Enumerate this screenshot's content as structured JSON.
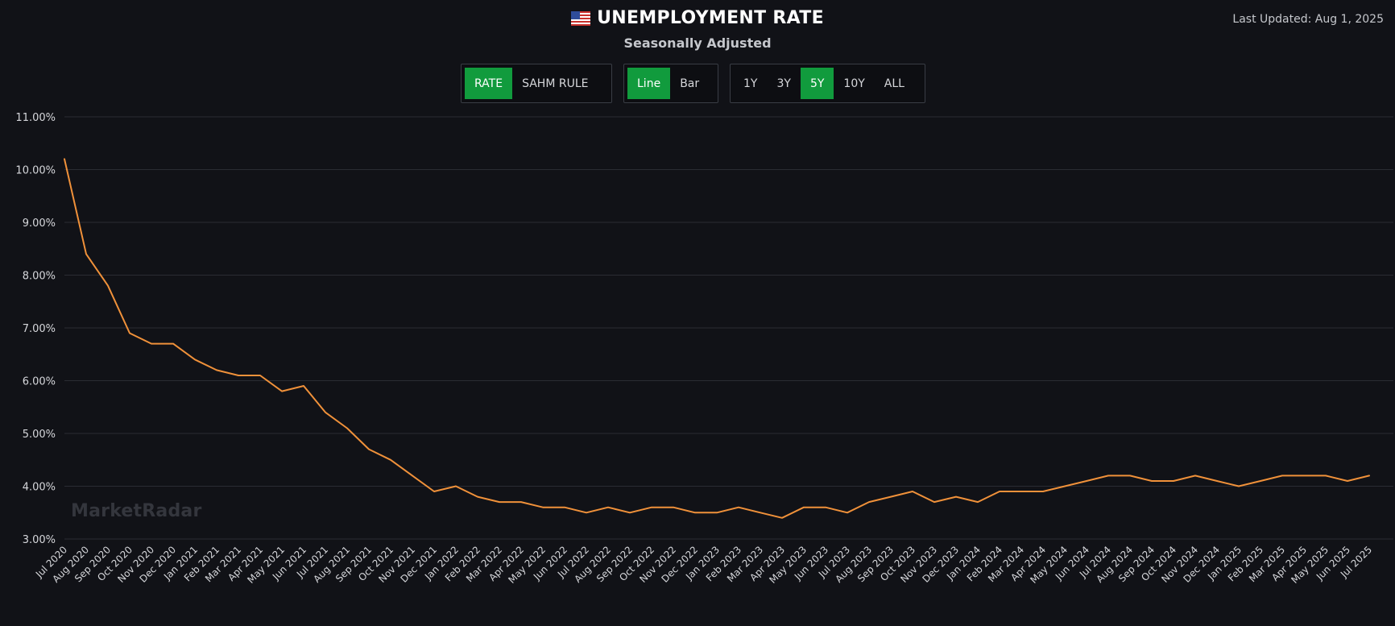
{
  "header": {
    "title": "UNEMPLOYMENT RATE",
    "subtitle": "Seasonally Adjusted",
    "last_updated": "Last Updated: Aug 1, 2025",
    "flag_icon": "us-flag-icon"
  },
  "controls": {
    "metric": {
      "options": [
        "RATE",
        "SAHM RULE"
      ],
      "selected": "RATE"
    },
    "chart_type": {
      "options": [
        "Line",
        "Bar"
      ],
      "selected": "Line"
    },
    "range": {
      "options": [
        "1Y",
        "3Y",
        "5Y",
        "10Y",
        "ALL"
      ],
      "selected": "5Y"
    }
  },
  "watermark": "MarketRadar",
  "colors": {
    "background": "#111217",
    "line": "#f0913a",
    "accent_green": "#119b3d",
    "grid": "#2a2c33",
    "axis_text": "#d6d7db"
  },
  "chart_data": {
    "type": "line",
    "title": "UNEMPLOYMENT RATE",
    "subtitle": "Seasonally Adjusted",
    "xlabel": "",
    "ylabel": "",
    "ylim": [
      3.0,
      11.0
    ],
    "yticks": [
      "3.00%",
      "4.00%",
      "5.00%",
      "6.00%",
      "7.00%",
      "8.00%",
      "9.00%",
      "10.00%",
      "11.00%"
    ],
    "ytick_values": [
      3,
      4,
      5,
      6,
      7,
      8,
      9,
      10,
      11
    ],
    "grid": true,
    "legend": "none",
    "x": [
      "Jul 2020",
      "Aug 2020",
      "Sep 2020",
      "Oct 2020",
      "Nov 2020",
      "Dec 2020",
      "Jan 2021",
      "Feb 2021",
      "Mar 2021",
      "Apr 2021",
      "May 2021",
      "Jun 2021",
      "Jul 2021",
      "Aug 2021",
      "Sep 2021",
      "Oct 2021",
      "Nov 2021",
      "Dec 2021",
      "Jan 2022",
      "Feb 2022",
      "Mar 2022",
      "Apr 2022",
      "May 2022",
      "Jun 2022",
      "Jul 2022",
      "Aug 2022",
      "Sep 2022",
      "Oct 2022",
      "Nov 2022",
      "Dec 2022",
      "Jan 2023",
      "Feb 2023",
      "Mar 2023",
      "Apr 2023",
      "May 2023",
      "Jun 2023",
      "Jul 2023",
      "Aug 2023",
      "Sep 2023",
      "Oct 2023",
      "Nov 2023",
      "Dec 2023",
      "Jan 2024",
      "Feb 2024",
      "Mar 2024",
      "Apr 2024",
      "May 2024",
      "Jun 2024",
      "Jul 2024",
      "Aug 2024",
      "Sep 2024",
      "Oct 2024",
      "Nov 2024",
      "Dec 2024",
      "Jan 2025",
      "Feb 2025",
      "Mar 2025",
      "Apr 2025",
      "May 2025",
      "Jun 2025",
      "Jul 2025"
    ],
    "series": [
      {
        "values": [
          10.2,
          8.4,
          7.8,
          6.9,
          6.7,
          6.7,
          6.4,
          6.2,
          6.1,
          6.1,
          5.8,
          5.9,
          5.4,
          5.1,
          4.7,
          4.5,
          4.2,
          3.9,
          4.0,
          3.8,
          3.7,
          3.7,
          3.6,
          3.6,
          3.5,
          3.6,
          3.5,
          3.6,
          3.6,
          3.5,
          3.5,
          3.6,
          3.5,
          3.4,
          3.6,
          3.6,
          3.5,
          3.7,
          3.8,
          3.9,
          3.7,
          3.8,
          3.7,
          3.9,
          3.9,
          3.9,
          4.0,
          4.1,
          4.2,
          4.2,
          4.1,
          4.1,
          4.2,
          4.1,
          4.0,
          4.1,
          4.2,
          4.2,
          4.2,
          4.1,
          4.2
        ]
      }
    ]
  }
}
